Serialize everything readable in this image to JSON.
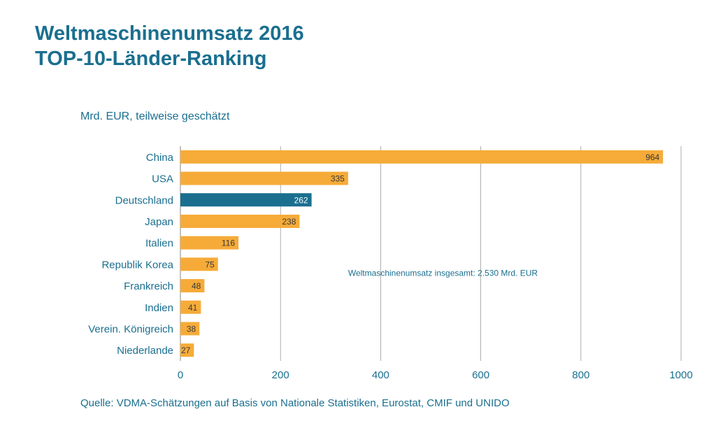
{
  "title_line1": "Weltmaschinenumsatz 2016",
  "title_line2": "TOP-10-Länder-Ranking",
  "unit_label": "Mrd. EUR, teilweise geschätzt",
  "source": "Quelle: VDMA-Schätzungen auf Basis von Nationale Statistiken, Eurostat, CMIF und UNIDO",
  "colors": {
    "bar": "#f6ab38",
    "highlight": "#1a6f8f",
    "text": "#1a6f8f",
    "grid": "#9a9a9a"
  },
  "chart_data": {
    "type": "bar",
    "orientation": "horizontal",
    "categories": [
      "China",
      "USA",
      "Deutschland",
      "Japan",
      "Italien",
      "Republik Korea",
      "Frankreich",
      "Indien",
      "Verein. Königreich",
      "Niederlande"
    ],
    "values": [
      964,
      335,
      262,
      238,
      116,
      75,
      48,
      41,
      38,
      27
    ],
    "highlight": "Deutschland",
    "xlim": [
      0,
      1000
    ],
    "xticks": [
      0,
      200,
      400,
      600,
      800,
      1000
    ],
    "grid": "vertical",
    "annotation": "Weltmaschinenumsatz  insgesamt: 2.530 Mrd. EUR"
  }
}
